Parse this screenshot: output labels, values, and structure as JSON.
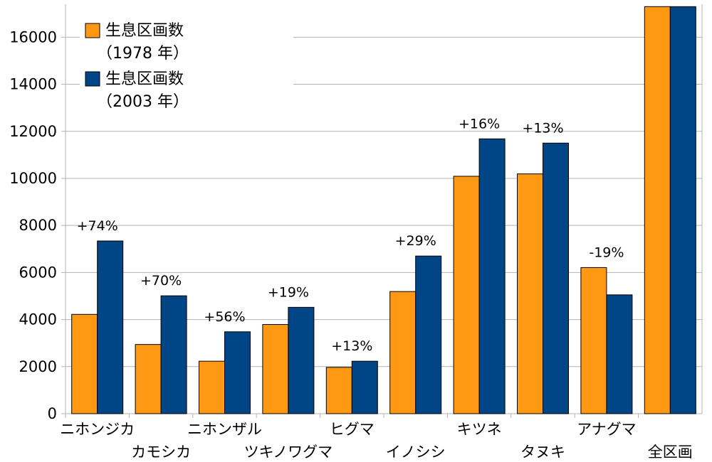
{
  "chart_data": {
    "type": "bar",
    "categories": [
      "ニホンジカ",
      "カモシカ",
      "ニホンザル",
      "ツキノワグマ",
      "ヒグマ",
      "イノシシ",
      "キツネ",
      "タヌキ",
      "アナグマ",
      "全区画"
    ],
    "series": [
      {
        "name_line1": "生息区画数",
        "name_line2": "（1978 年）",
        "color": "#ff9914",
        "values": [
          4220,
          2940,
          2230,
          3790,
          1970,
          5190,
          10090,
          10190,
          6210,
          17300
        ]
      },
      {
        "name_line1": "生息区画数",
        "name_line2": "（2003 年）",
        "color": "#004586",
        "values": [
          7340,
          5010,
          3480,
          4520,
          2230,
          6700,
          11680,
          11500,
          5050,
          17300
        ]
      }
    ],
    "data_labels": [
      "+74%",
      "+70%",
      "+56%",
      "+19%",
      "+13%",
      "+29%",
      "+16%",
      "+13%",
      "-19%",
      ""
    ],
    "y_ticks": [
      "0",
      "2000",
      "4000",
      "6000",
      "8000",
      "10000",
      "12000",
      "14000",
      "16000"
    ],
    "ylim": [
      0,
      17400
    ],
    "grid": true,
    "legend_position": "top-left",
    "title": "",
    "xlabel": "",
    "ylabel": ""
  }
}
